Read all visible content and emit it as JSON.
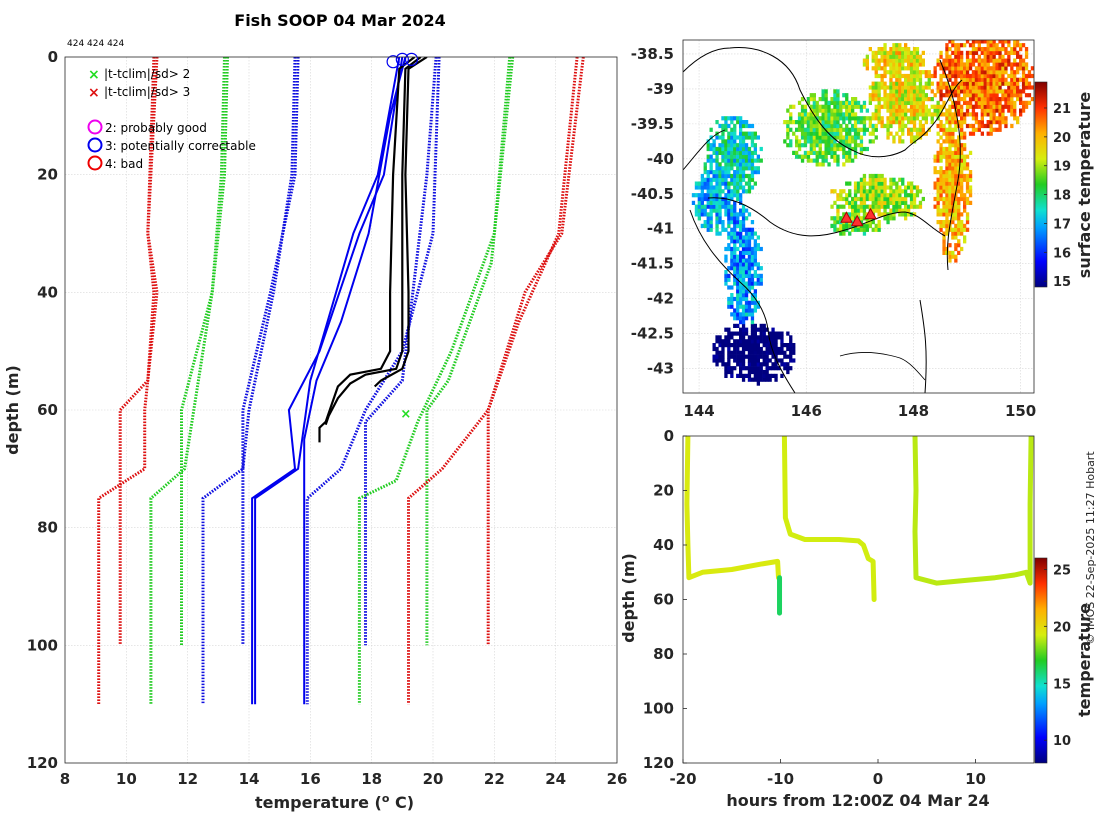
{
  "chart_data": [
    {
      "type": "line",
      "title": "Fish SOOP 04 Mar 2024",
      "profile_ids": "424 424 424",
      "xlabel": "temperature (",
      "xlabel_sup": "o",
      "xlabel_tail": " C)",
      "ylabel": "depth (m)",
      "xlim": [
        8,
        26
      ],
      "ylim": [
        0,
        120
      ],
      "xticks": [
        "8",
        "10",
        "12",
        "14",
        "16",
        "18",
        "20",
        "22",
        "24",
        "26"
      ],
      "yticks": [
        "0",
        "20",
        "40",
        "60",
        "80",
        "100",
        "120"
      ],
      "legend": {
        "cross_green": "|t-tclim|/sd> 2",
        "cross_red": "|t-tclim|/sd> 3",
        "flag2": "2: probably good",
        "flag3": "3: potentially correctable",
        "flag4": "4: bad"
      },
      "colors": {
        "clim_sd1": "#1010e0",
        "clim_sd2": "#22cc22",
        "clim_sd3": "#dd1111",
        "obs": "#000000",
        "mean": "#0000ee"
      },
      "climatology_series": [
        {
          "name": "clim-3sd-left-a",
          "color": "#dd1111",
          "points": [
            [
              10.9,
              0
            ],
            [
              10.7,
              30
            ],
            [
              11.0,
              40
            ],
            [
              10.6,
              60
            ],
            [
              10.6,
              70
            ],
            [
              9.1,
              75
            ],
            [
              9.1,
              110
            ]
          ]
        },
        {
          "name": "clim-3sd-left-b",
          "color": "#dd1111",
          "points": [
            [
              11.0,
              0
            ],
            [
              10.7,
              30
            ],
            [
              10.9,
              40
            ],
            [
              10.7,
              55
            ],
            [
              9.8,
              60
            ],
            [
              9.8,
              100
            ]
          ]
        },
        {
          "name": "clim-2sd-left-a",
          "color": "#22cc22",
          "points": [
            [
              13.2,
              0
            ],
            [
              13.1,
              20
            ],
            [
              12.8,
              40
            ],
            [
              12.2,
              60
            ],
            [
              11.9,
              70
            ],
            [
              10.8,
              75
            ],
            [
              10.8,
              110
            ]
          ]
        },
        {
          "name": "clim-2sd-left-b",
          "color": "#22cc22",
          "points": [
            [
              13.3,
              0
            ],
            [
              13.2,
              20
            ],
            [
              12.8,
              40
            ],
            [
              11.8,
              60
            ],
            [
              11.8,
              100
            ]
          ]
        },
        {
          "name": "clim-1sd-left-a",
          "color": "#1010e0",
          "points": [
            [
              15.5,
              0
            ],
            [
              15.4,
              20
            ],
            [
              14.8,
              40
            ],
            [
              14.0,
              60
            ],
            [
              13.8,
              70
            ],
            [
              12.5,
              75
            ],
            [
              12.5,
              110
            ]
          ]
        },
        {
          "name": "clim-1sd-left-b",
          "color": "#1010e0",
          "points": [
            [
              15.6,
              0
            ],
            [
              15.5,
              20
            ],
            [
              14.7,
              40
            ],
            [
              13.8,
              60
            ],
            [
              13.8,
              100
            ]
          ]
        },
        {
          "name": "clim-1sd-right-a",
          "color": "#1010e0",
          "points": [
            [
              20.2,
              0
            ],
            [
              20.0,
              30
            ],
            [
              19.0,
              50
            ],
            [
              17.8,
              60
            ],
            [
              17.0,
              70
            ],
            [
              15.9,
              75
            ],
            [
              15.9,
              110
            ]
          ]
        },
        {
          "name": "clim-1sd-right-b",
          "color": "#1010e0",
          "points": [
            [
              20.1,
              0
            ],
            [
              19.8,
              20
            ],
            [
              19.0,
              55
            ],
            [
              17.8,
              62
            ],
            [
              17.8,
              100
            ]
          ]
        },
        {
          "name": "clim-2sd-right-a",
          "color": "#22cc22",
          "points": [
            [
              22.5,
              0
            ],
            [
              22.0,
              30
            ],
            [
              20.6,
              50
            ],
            [
              19.5,
              62
            ],
            [
              18.8,
              72
            ],
            [
              17.6,
              75
            ],
            [
              17.6,
              110
            ]
          ]
        },
        {
          "name": "clim-2sd-right-b",
          "color": "#22cc22",
          "points": [
            [
              22.6,
              0
            ],
            [
              21.9,
              35
            ],
            [
              20.5,
              55
            ],
            [
              19.8,
              60
            ],
            [
              19.8,
              100
            ]
          ]
        },
        {
          "name": "clim-3sd-right-a",
          "color": "#dd1111",
          "points": [
            [
              24.7,
              0
            ],
            [
              24.1,
              30
            ],
            [
              22.8,
              45
            ],
            [
              21.8,
              60
            ],
            [
              20.3,
              70
            ],
            [
              19.2,
              75
            ],
            [
              19.2,
              110
            ]
          ]
        },
        {
          "name": "clim-3sd-right-b",
          "color": "#dd1111",
          "points": [
            [
              24.9,
              0
            ],
            [
              24.2,
              30
            ],
            [
              23.0,
              40
            ],
            [
              21.8,
              60
            ],
            [
              21.8,
              100
            ]
          ]
        }
      ],
      "mean_series": [
        {
          "name": "clim-mean-a",
          "color": "#0000ee",
          "points": [
            [
              18.9,
              0
            ],
            [
              18.2,
              20
            ],
            [
              17.4,
              30
            ],
            [
              16.0,
              55
            ],
            [
              15.6,
              70
            ],
            [
              14.2,
              75
            ],
            [
              14.2,
              110
            ]
          ]
        },
        {
          "name": "clim-mean-b",
          "color": "#0000ee",
          "points": [
            [
              19.0,
              0
            ],
            [
              18.4,
              20
            ],
            [
              17.6,
              30
            ],
            [
              16.3,
              50
            ],
            [
              15.3,
              60
            ],
            [
              15.5,
              70
            ],
            [
              14.1,
              75
            ],
            [
              14.1,
              110
            ]
          ]
        },
        {
          "name": "clim-mean-c",
          "color": "#0000ee",
          "points": [
            [
              19.1,
              0
            ],
            [
              18.6,
              10
            ],
            [
              17.9,
              30
            ],
            [
              17.0,
              45
            ],
            [
              16.2,
              55
            ],
            [
              15.8,
              65
            ],
            [
              15.8,
              75
            ],
            [
              15.8,
              110
            ]
          ]
        }
      ],
      "obs_series": [
        {
          "name": "profile-1",
          "points": [
            [
              19.4,
              0
            ],
            [
              18.9,
              2
            ],
            [
              18.7,
              20
            ],
            [
              18.6,
              40
            ],
            [
              18.6,
              50
            ],
            [
              18.3,
              53
            ],
            [
              17.3,
              54
            ],
            [
              16.9,
              56
            ],
            [
              16.7,
              59
            ],
            [
              16.5,
              62
            ],
            [
              16.3,
              63
            ],
            [
              16.3,
              65.5
            ]
          ]
        },
        {
          "name": "profile-2",
          "points": [
            [
              19.6,
              0
            ],
            [
              19.1,
              2
            ],
            [
              19.0,
              20
            ],
            [
              19.0,
              40
            ],
            [
              19.0,
              50
            ],
            [
              18.8,
              53
            ],
            [
              17.8,
              54
            ],
            [
              17.3,
              55.5
            ],
            [
              16.9,
              58
            ],
            [
              16.6,
              61
            ],
            [
              16.5,
              62.5
            ]
          ]
        },
        {
          "name": "profile-3",
          "points": [
            [
              19.8,
              0
            ],
            [
              19.2,
              2
            ],
            [
              19.1,
              20
            ],
            [
              19.2,
              40
            ],
            [
              19.2,
              50
            ],
            [
              19.0,
              53
            ],
            [
              18.3,
              55
            ],
            [
              18.1,
              56
            ]
          ]
        }
      ],
      "flag_circles": [
        [
          18.7,
          0.8
        ],
        [
          19.0,
          0.4
        ],
        [
          19.3,
          0.4
        ]
      ],
      "green_cross": [
        19.1,
        60.5
      ]
    },
    {
      "type": "heatmap",
      "ylabel": "",
      "colorbar_label": "surface temperature",
      "xlim": [
        143.7,
        150.25
      ],
      "ylim": [
        -43.35,
        -38.3
      ],
      "xticks": [
        "144",
        "146",
        "148",
        "150"
      ],
      "yticks": [
        "-38.5",
        "-39",
        "-39.5",
        "-40",
        "-40.5",
        "-41",
        "-41.5",
        "-42",
        "-42.5",
        "-43"
      ],
      "colorbar_ticks": [
        "15",
        "16",
        "17",
        "18",
        "19",
        "20",
        "21"
      ],
      "colorbar_range": [
        14.8,
        21.9
      ],
      "track_points": [
        [
          146.75,
          -40.85
        ],
        [
          146.95,
          -40.9
        ],
        [
          147.2,
          -40.8
        ]
      ]
    },
    {
      "type": "scatter",
      "xlabel": "hours from 12:00Z 04 Mar 24",
      "ylabel": "depth (m)",
      "colorbar_label": "temperature",
      "xlim": [
        -20,
        16
      ],
      "ylim": [
        0,
        120
      ],
      "xticks": [
        "-20",
        "-10",
        "0",
        "10"
      ],
      "yticks": [
        "0",
        "20",
        "40",
        "60",
        "80",
        "100",
        "120"
      ],
      "colorbar_ticks": [
        "10",
        "15",
        "20",
        "25"
      ],
      "colorbar_range": [
        8,
        26
      ],
      "casts": [
        {
          "name": "cast-1",
          "temp": 19.4,
          "points": [
            [
              -19.5,
              0
            ],
            [
              -19.6,
              25
            ],
            [
              -19.5,
              40
            ],
            [
              -19.4,
              52
            ],
            [
              -18,
              50
            ],
            [
              -15,
              49
            ],
            [
              -12,
              47
            ],
            [
              -10.3,
              46
            ],
            [
              -10.2,
              52
            ]
          ],
          "deep": {
            "x": -10.1,
            "from": 52,
            "to": 65,
            "temp": 16.2
          }
        },
        {
          "name": "cast-2",
          "temp": 19.2,
          "points": [
            [
              -9.6,
              0
            ],
            [
              -9.5,
              30
            ],
            [
              -9.0,
              36
            ],
            [
              -7.5,
              38
            ],
            [
              -4,
              38
            ],
            [
              -2,
              38.5
            ],
            [
              -1.5,
              40
            ],
            [
              -1.0,
              45
            ],
            [
              -0.5,
              46
            ],
            [
              -0.4,
              60
            ]
          ]
        },
        {
          "name": "cast-3",
          "temp": 18.9,
          "points": [
            [
              3.8,
              0
            ],
            [
              3.9,
              20
            ],
            [
              3.8,
              35
            ],
            [
              3.9,
              52
            ],
            [
              6,
              54
            ],
            [
              9,
              53
            ],
            [
              12,
              52
            ],
            [
              14,
              51
            ],
            [
              15.2,
              50
            ],
            [
              15.6,
              54
            ],
            [
              15.6,
              25
            ],
            [
              15.7,
              0
            ]
          ]
        }
      ]
    }
  ],
  "watermark": "© IMOS 22-Sep-2025 11:27 Hobart"
}
